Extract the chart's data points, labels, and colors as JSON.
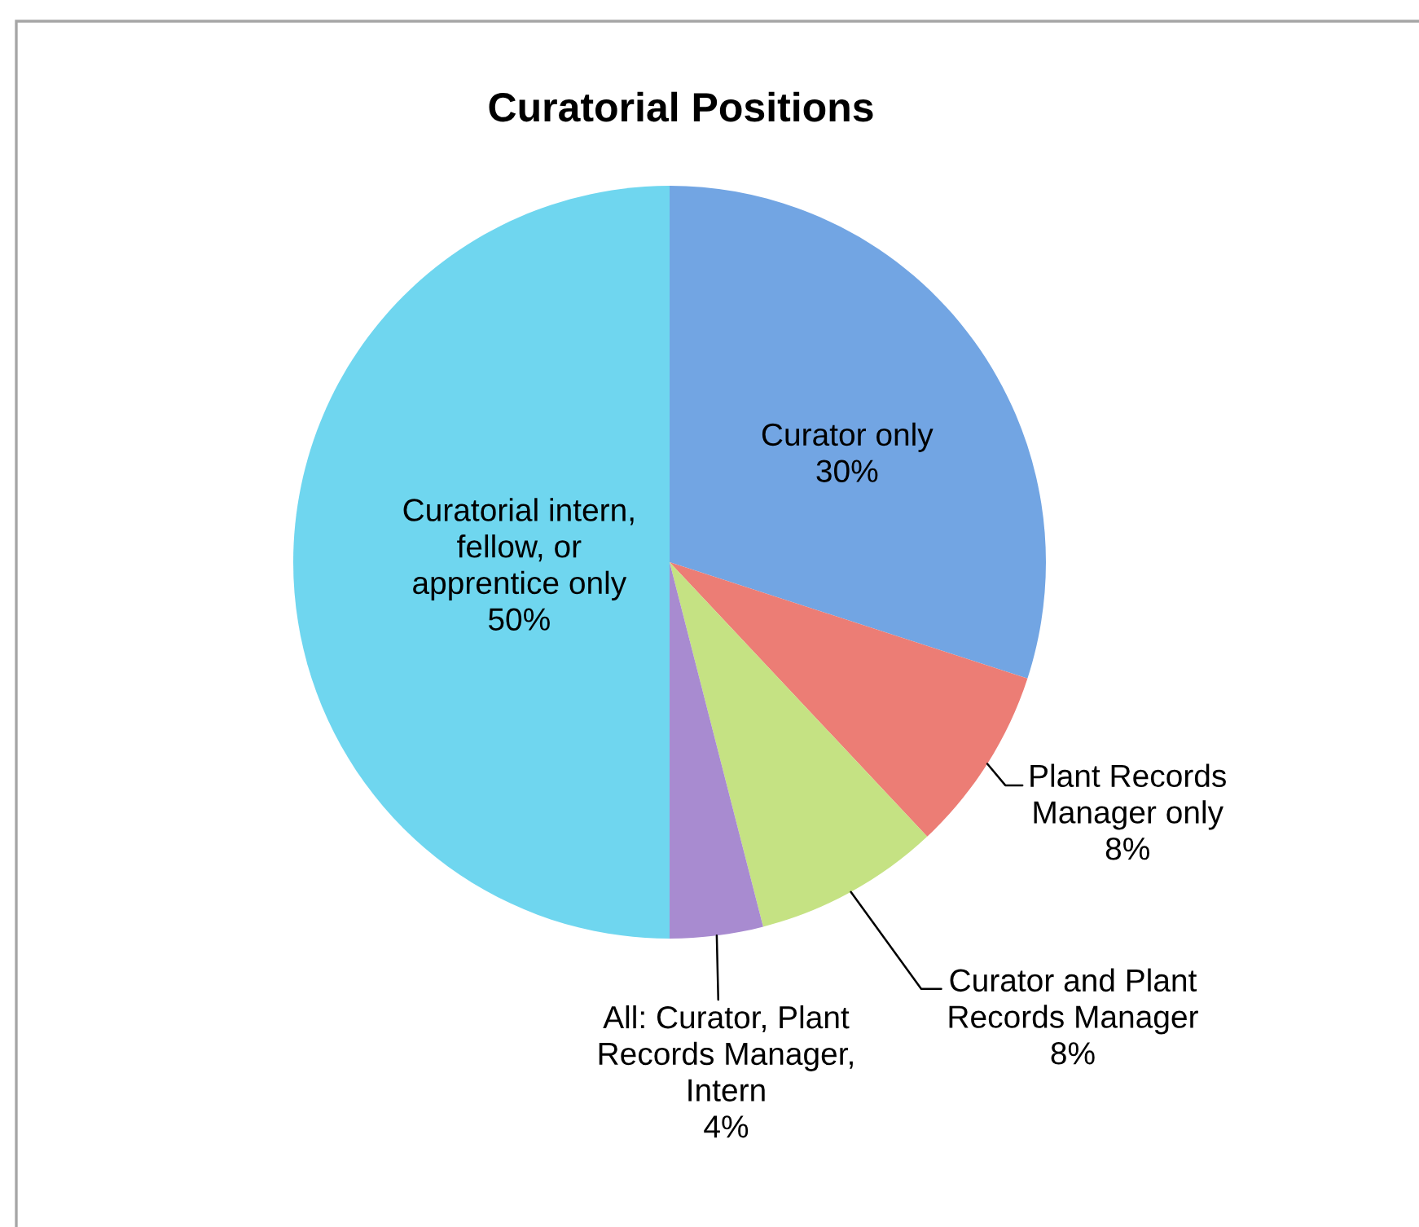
{
  "chart_data": {
    "type": "pie",
    "title": "Curatorial Positions",
    "categories": [
      "Curator only",
      "Plant Records\nManager only",
      "Curator and Plant\nRecords Manager",
      "All: Curator, Plant\nRecords Manager,\nIntern",
      "Curatorial intern,\nfellow, or\napprentice only"
    ],
    "values": [
      30,
      8,
      8,
      4,
      50
    ],
    "colors": [
      "#72a5e3",
      "#ec7d75",
      "#c5e283",
      "#a88bd0",
      "#6fd6ef"
    ],
    "value_labels": [
      "30%",
      "8%",
      "8%",
      "4%",
      "50%"
    ]
  }
}
